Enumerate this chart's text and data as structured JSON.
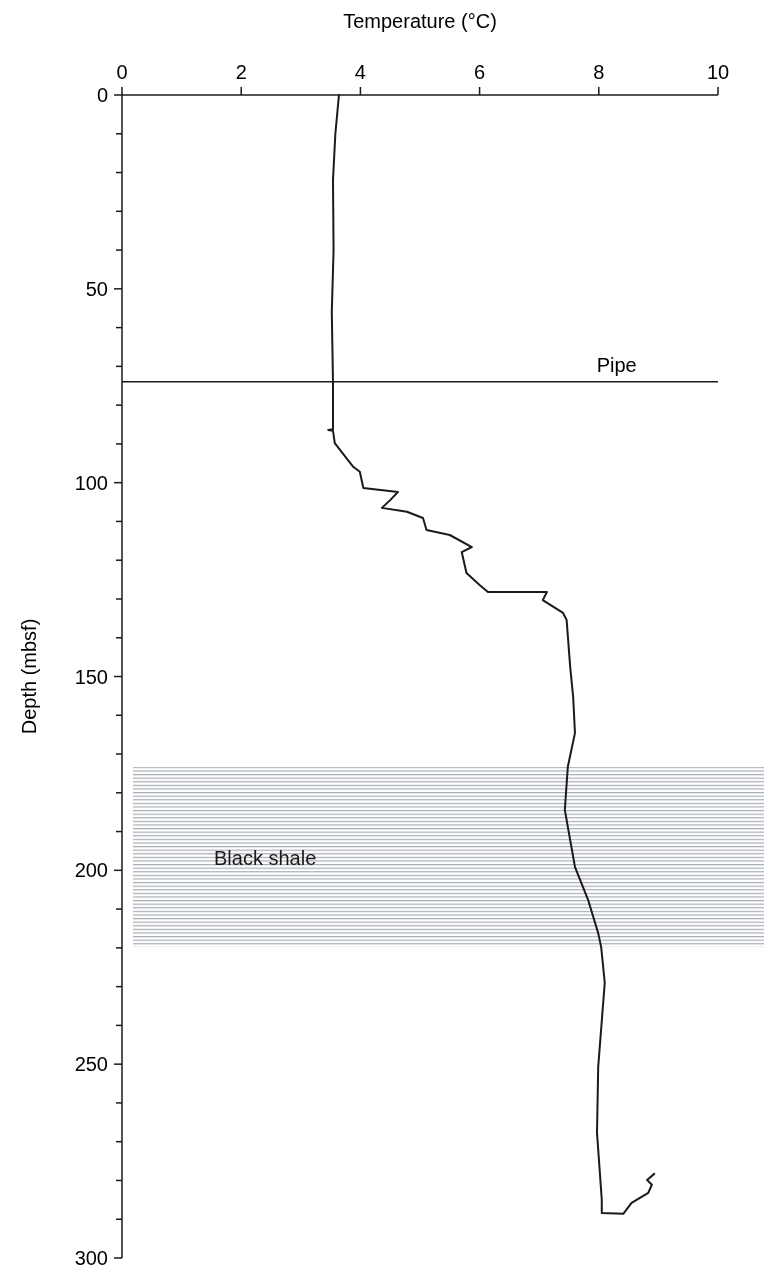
{
  "chart_data": {
    "type": "line",
    "xlabel": "Temperature (°C)",
    "ylabel": "Depth (mbsf)",
    "xlim": [
      0,
      10
    ],
    "xticks": [
      0,
      2,
      4,
      6,
      8,
      10
    ],
    "ylim": [
      300,
      0
    ],
    "yticks": [
      0,
      {
        "value": 10,
        "label": null
      },
      {
        "value": 20,
        "label": null
      },
      {
        "value": 30,
        "label": null
      },
      {
        "value": 40,
        "label": null
      },
      50,
      {
        "value": 60,
        "label": null
      },
      {
        "value": 70,
        "label": null
      },
      {
        "value": 80,
        "label": null
      },
      {
        "value": 90,
        "label": null
      },
      100,
      {
        "value": 110,
        "label": null
      },
      {
        "value": 120,
        "label": null
      },
      {
        "value": 130,
        "label": null
      },
      {
        "value": 140,
        "label": null
      },
      150,
      {
        "value": 160,
        "label": null
      },
      {
        "value": 170,
        "label": null
      },
      {
        "value": 180,
        "label": null
      },
      {
        "value": 190,
        "label": null
      },
      200,
      {
        "value": 210,
        "label": null
      },
      {
        "value": 220,
        "label": null
      },
      {
        "value": 230,
        "label": null
      },
      {
        "value": 240,
        "label": null
      },
      250,
      {
        "value": 260,
        "label": null
      },
      {
        "value": 270,
        "label": null
      },
      {
        "value": 280,
        "label": null
      },
      {
        "value": 290,
        "label": null
      },
      300
    ],
    "grid": false,
    "series": [
      {
        "color": "#1a1a1a",
        "x": [
          3.64,
          3.58,
          3.54,
          3.55,
          3.52,
          3.54,
          3.54,
          3.46,
          3.54,
          3.57,
          3.88,
          3.99,
          4.05,
          4.63,
          4.5,
          4.36,
          4.78,
          5.05,
          5.11,
          5.5,
          5.87,
          5.7,
          5.78,
          6.0,
          6.14,
          7.13,
          7.06,
          7.4,
          7.46,
          7.52,
          7.57,
          7.6,
          7.48,
          7.43,
          7.52,
          7.6,
          7.82,
          7.99,
          8.04,
          8.1,
          7.99,
          7.97,
          8.05,
          8.05,
          8.41,
          8.55,
          8.83,
          8.89,
          8.81,
          8.93
        ],
        "values": [
          0,
          10,
          22,
          40,
          56,
          74,
          86.2,
          86.4,
          86.6,
          89.8,
          95.9,
          97.2,
          101.4,
          102.4,
          104.5,
          106.5,
          107.5,
          109.1,
          112.2,
          113.5,
          116.6,
          117.9,
          123.3,
          126.4,
          128.2,
          128.2,
          130.3,
          133.6,
          135.4,
          147.5,
          155.3,
          164.6,
          173.3,
          184.4,
          192.2,
          199.1,
          207.6,
          216.2,
          219.8,
          229,
          250.7,
          267.7,
          285,
          288.4,
          288.6,
          285.8,
          283.2,
          281.1,
          279.9,
          278.3
        ]
      }
    ],
    "ref_lines": [
      {
        "axis": "y",
        "value": 74,
        "label": "Pipe",
        "color": "#1a1a1a"
      }
    ],
    "bands": [
      {
        "axis": "y",
        "from": 173.3,
        "to": 219.8,
        "label": "Black shale",
        "color": "#a7adb5"
      }
    ]
  }
}
